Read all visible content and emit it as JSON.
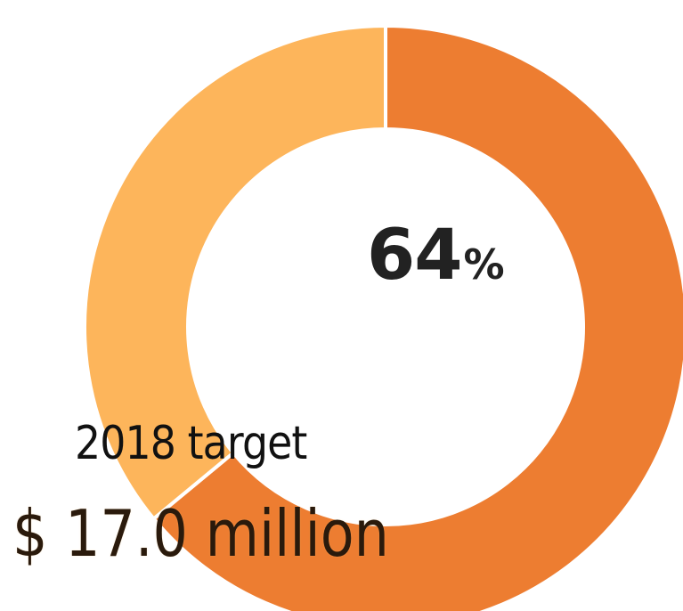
{
  "chart_data": {
    "type": "pie",
    "style": "donut",
    "slices": [
      {
        "label": "",
        "value": 64,
        "color": "#ED7D31"
      },
      {
        "label": "",
        "value": 36,
        "color": "#FDB55B"
      }
    ],
    "center_value": "64",
    "center_unit": "%",
    "annotations": {
      "target_label": "2018 target",
      "target_amount": "$ 17.0 million"
    }
  }
}
